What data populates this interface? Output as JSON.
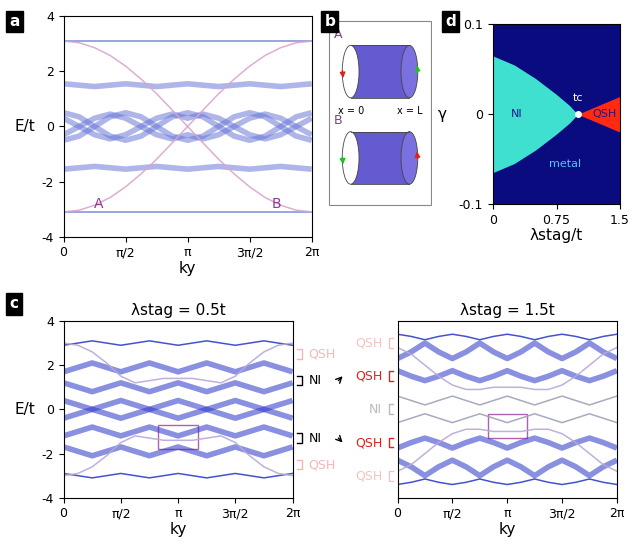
{
  "panel_labels": [
    "a",
    "b",
    "c",
    "d"
  ],
  "chart_data": [
    {
      "type": "band_structure",
      "panel": "a",
      "xlabel": "ky",
      "ylabel": "E/t",
      "xlim": [
        0,
        6.283
      ],
      "ylim": [
        -4,
        4
      ],
      "xticks": [
        0,
        {
          "value": 1.571,
          "label": "π/2"
        },
        {
          "value": 3.142,
          "label": "π"
        },
        {
          "value": 4.712,
          "label": "3π/2"
        },
        {
          "value": 6.283,
          "label": "2π"
        }
      ],
      "yticks": [
        -4,
        -2,
        0,
        2,
        4
      ],
      "x": [
        0,
        0.393,
        0.785,
        1.178,
        1.571,
        1.963,
        2.356,
        2.749,
        3.142,
        3.534,
        3.927,
        4.32,
        4.712,
        5.105,
        5.498,
        5.89,
        6.283
      ],
      "series": [
        {
          "type": "line",
          "color": "#7080d0",
          "values": [
            3.1,
            3.1,
            3.1,
            3.1,
            3.1,
            3.1,
            3.1,
            3.1,
            3.1,
            3.1,
            3.1,
            3.1,
            3.1,
            3.1,
            3.1,
            3.1,
            3.1
          ]
        },
        {
          "type": "line",
          "color": "#7080d0",
          "values": [
            -3.1,
            -3.1,
            -3.1,
            -3.1,
            -3.1,
            -3.1,
            -3.1,
            -3.1,
            -3.1,
            -3.1,
            -3.1,
            -3.1,
            -3.1,
            -3.1,
            -3.1,
            -3.1,
            -3.1
          ]
        },
        {
          "type": "band",
          "color": "#6a78d8",
          "values": [
            1.55,
            1.5,
            1.45,
            1.5,
            1.55,
            1.5,
            1.45,
            1.5,
            1.55,
            1.5,
            1.45,
            1.5,
            1.55,
            1.5,
            1.45,
            1.5,
            1.55
          ]
        },
        {
          "type": "band",
          "color": "#6a78d8",
          "values": [
            -1.55,
            -1.5,
            -1.45,
            -1.5,
            -1.55,
            -1.5,
            -1.45,
            -1.5,
            -1.55,
            -1.5,
            -1.45,
            -1.5,
            -1.55,
            -1.5,
            -1.45,
            -1.5,
            -1.55
          ]
        },
        {
          "type": "band",
          "color": "#6a78d8",
          "values": [
            0.5,
            0.35,
            0,
            -0.35,
            -0.5,
            -0.35,
            0,
            0.35,
            0.5,
            0.35,
            0,
            -0.35,
            -0.5,
            -0.35,
            0,
            0.35,
            0.5
          ]
        },
        {
          "type": "band",
          "color": "#6a78d8",
          "values": [
            -0.5,
            -0.35,
            0,
            0.35,
            0.5,
            0.35,
            0,
            -0.35,
            -0.5,
            -0.35,
            0,
            0.35,
            0.5,
            0.35,
            0,
            -0.35,
            -0.5
          ]
        },
        {
          "type": "band",
          "color": "#6a78d8",
          "values": [
            -0.3,
            0,
            0.3,
            0.45,
            0.3,
            0,
            -0.3,
            -0.45,
            -0.3,
            -0.45,
            -0.3,
            0,
            0.3,
            0.45,
            0.3,
            0,
            -0.3
          ]
        },
        {
          "type": "band",
          "color": "#6a78d8",
          "values": [
            0.3,
            0,
            -0.3,
            -0.45,
            -0.3,
            0,
            0.3,
            0.45,
            0.3,
            0.45,
            0.3,
            0,
            -0.3,
            -0.45,
            -0.3,
            0,
            0.3
          ]
        },
        {
          "type": "line",
          "color": "#d8a6cf",
          "values": [
            -3.1,
            -3.04,
            -2.86,
            -2.58,
            -2.19,
            -1.72,
            -1.19,
            -0.6,
            0,
            0.6,
            1.19,
            1.72,
            2.19,
            2.58,
            2.86,
            3.04,
            3.1
          ]
        },
        {
          "type": "line",
          "color": "#d8a6cf",
          "values": [
            3.1,
            3.04,
            2.86,
            2.58,
            2.19,
            1.72,
            1.19,
            0.6,
            0,
            -0.6,
            -1.19,
            -1.72,
            -2.19,
            -2.58,
            -2.86,
            -3.04,
            -3.1
          ]
        }
      ],
      "labels": [
        {
          "text": "A",
          "x": 0.9,
          "y": -2.8,
          "color": "#8b3a8b"
        },
        {
          "text": "B",
          "x": 5.4,
          "y": -2.8,
          "color": "#8b3a8b"
        }
      ]
    },
    {
      "type": "band_structure",
      "panel": "c",
      "title": "λstag = 0.5t",
      "xlabel": "ky",
      "ylabel": "E/t",
      "xlim": [
        0,
        6.283
      ],
      "ylim": [
        -4,
        4
      ],
      "xticks": [
        0,
        {
          "value": 1.571,
          "label": "π/2"
        },
        {
          "value": 3.142,
          "label": "π"
        },
        {
          "value": 4.712,
          "label": "3π/2"
        },
        {
          "value": 6.283,
          "label": "2π"
        }
      ],
      "yticks": [
        -4,
        -2,
        0,
        2,
        4
      ],
      "x": [
        0,
        0.393,
        0.785,
        1.178,
        1.571,
        1.963,
        2.356,
        2.749,
        3.142,
        3.534,
        3.927,
        4.32,
        4.712,
        5.105,
        5.498,
        5.89,
        6.283
      ],
      "series": [
        {
          "type": "line",
          "color": "#3040c8",
          "values": [
            2.9,
            3.0,
            3.1,
            3.0,
            2.9,
            3.0,
            3.1,
            3.0,
            2.9,
            3.0,
            3.1,
            3.0,
            2.9,
            3.0,
            3.1,
            3.0,
            2.9
          ]
        },
        {
          "type": "line",
          "color": "#3040c8",
          "values": [
            -2.9,
            -3.0,
            -3.1,
            -3.0,
            -2.9,
            -3.0,
            -3.1,
            -3.0,
            -2.9,
            -3.0,
            -3.1,
            -3.0,
            -2.9,
            -3.0,
            -3.1,
            -3.0,
            -2.9
          ]
        },
        {
          "type": "band",
          "color": "#2a35c8",
          "values": [
            1.7,
            1.9,
            2.1,
            1.9,
            1.7,
            1.9,
            2.1,
            1.9,
            1.7,
            1.9,
            2.1,
            1.9,
            1.7,
            1.9,
            2.1,
            1.9,
            1.7
          ]
        },
        {
          "type": "band",
          "color": "#2a35c8",
          "values": [
            -1.7,
            -1.9,
            -2.1,
            -1.9,
            -1.7,
            -1.9,
            -2.1,
            -1.9,
            -1.7,
            -1.9,
            -2.1,
            -1.9,
            -1.7,
            -1.9,
            -2.1,
            -1.9,
            -1.7
          ]
        },
        {
          "type": "band",
          "color": "#2a35c8",
          "values": [
            1.2,
            1.0,
            0.8,
            1.0,
            1.2,
            1.0,
            0.8,
            1.0,
            1.2,
            1.0,
            0.8,
            1.0,
            1.2,
            1.0,
            0.8,
            1.0,
            1.2
          ]
        },
        {
          "type": "band",
          "color": "#2a35c8",
          "values": [
            -1.2,
            -1.0,
            -0.8,
            -1.0,
            -1.2,
            -1.0,
            -0.8,
            -1.0,
            -1.2,
            -1.0,
            -0.8,
            -1.0,
            -1.2,
            -1.0,
            -0.8,
            -1.0,
            -1.2
          ]
        },
        {
          "type": "band",
          "color": "#2a35c8",
          "values": [
            0.4,
            0.2,
            0,
            -0.2,
            -0.4,
            -0.2,
            0,
            0.2,
            0.4,
            0.2,
            0,
            -0.2,
            -0.4,
            -0.2,
            0,
            0.2,
            0.4
          ]
        },
        {
          "type": "band",
          "color": "#2a35c8",
          "values": [
            -0.4,
            -0.2,
            0,
            0.2,
            0.4,
            0.2,
            0,
            -0.2,
            -0.4,
            -0.2,
            0,
            0.2,
            0.4,
            0.2,
            0,
            -0.2,
            -0.4
          ]
        },
        {
          "type": "line",
          "color": "#b8a8d8",
          "values": [
            -3.0,
            -2.9,
            -2.6,
            -2.1,
            -1.5,
            -1.2,
            -1.3,
            -1.4,
            -1.4,
            -1.4,
            -1.3,
            -1.2,
            -1.5,
            -2.1,
            -2.6,
            -2.9,
            -3.0
          ]
        },
        {
          "type": "line",
          "color": "#b8a8d8",
          "values": [
            3.0,
            2.9,
            2.6,
            2.1,
            1.5,
            1.2,
            1.3,
            1.4,
            1.4,
            1.4,
            1.3,
            1.2,
            1.5,
            2.1,
            2.6,
            2.9,
            3.0
          ]
        }
      ],
      "highlight_box": {
        "x": [
          2.6,
          3.7
        ],
        "y": [
          -1.8,
          -0.7
        ],
        "color": "#b060b0"
      },
      "side_labels": [
        {
          "text": "QSH",
          "y": 2.5,
          "color": "#f2b8b8"
        },
        {
          "text": "NI",
          "y": 1.3,
          "color": "#000000"
        },
        {
          "text": "NI",
          "y": -1.3,
          "color": "#000000"
        },
        {
          "text": "QSH",
          "y": -2.5,
          "color": "#f2b8b8"
        }
      ]
    },
    {
      "type": "band_structure",
      "panel": "c",
      "title": "λstag = 1.5t",
      "xlabel": "ky",
      "tick_labels": "x",
      "xlim": [
        0,
        6.283
      ],
      "ylim": [
        -4,
        4
      ],
      "xticks": [
        0,
        {
          "value": 1.571,
          "label": "π/2"
        },
        {
          "value": 3.142,
          "label": "π"
        },
        {
          "value": 4.712,
          "label": "3π/2"
        },
        {
          "value": 6.283,
          "label": "2π"
        }
      ],
      "x": [
        0,
        0.393,
        0.785,
        1.178,
        1.571,
        1.963,
        2.356,
        2.749,
        3.142,
        3.534,
        3.927,
        4.32,
        4.712,
        5.105,
        5.498,
        5.89,
        6.283
      ],
      "series": [
        {
          "type": "line",
          "color": "#3040c8",
          "values": [
            3.4,
            3.3,
            3.15,
            3.3,
            3.4,
            3.3,
            3.15,
            3.3,
            3.4,
            3.3,
            3.15,
            3.3,
            3.4,
            3.3,
            3.15,
            3.3,
            3.4
          ]
        },
        {
          "type": "line",
          "color": "#3040c8",
          "values": [
            -3.4,
            -3.3,
            -3.15,
            -3.3,
            -3.4,
            -3.3,
            -3.15,
            -3.3,
            -3.4,
            -3.3,
            -3.15,
            -3.3,
            -3.4,
            -3.3,
            -3.15,
            -3.3,
            -3.4
          ]
        },
        {
          "type": "band",
          "color": "#2a35c8",
          "values": [
            2.3,
            2.6,
            3.0,
            2.6,
            2.3,
            2.6,
            3.0,
            2.6,
            2.3,
            2.6,
            3.0,
            2.6,
            2.3,
            2.6,
            3.0,
            2.6,
            2.3
          ]
        },
        {
          "type": "band",
          "color": "#2a35c8",
          "values": [
            -2.3,
            -2.6,
            -3.0,
            -2.6,
            -2.3,
            -2.6,
            -3.0,
            -2.6,
            -2.3,
            -2.6,
            -3.0,
            -2.6,
            -2.3,
            -2.6,
            -3.0,
            -2.6,
            -2.3
          ]
        },
        {
          "type": "band",
          "color": "#2a35c8",
          "values": [
            1.75,
            1.5,
            1.3,
            1.5,
            1.75,
            1.5,
            1.3,
            1.5,
            1.75,
            1.5,
            1.3,
            1.5,
            1.75,
            1.5,
            1.3,
            1.5,
            1.75
          ]
        },
        {
          "type": "band",
          "color": "#2a35c8",
          "values": [
            -1.75,
            -1.5,
            -1.3,
            -1.5,
            -1.75,
            -1.5,
            -1.3,
            -1.5,
            -1.75,
            -1.5,
            -1.3,
            -1.5,
            -1.75,
            -1.5,
            -1.3,
            -1.5,
            -1.75
          ]
        },
        {
          "type": "line",
          "color": "#a0a0b8",
          "values": [
            0.6,
            0.4,
            0.2,
            0.4,
            0.6,
            0.4,
            0.2,
            0.4,
            0.6,
            0.4,
            0.2,
            0.4,
            0.6,
            0.4,
            0.2,
            0.4,
            0.6
          ]
        },
        {
          "type": "line",
          "color": "#a0a0b8",
          "values": [
            -0.6,
            -0.4,
            -0.2,
            -0.4,
            -0.6,
            -0.4,
            -0.2,
            -0.4,
            -0.6,
            -0.4,
            -0.2,
            -0.4,
            -0.6,
            -0.4,
            -0.2,
            -0.4,
            -0.6
          ]
        },
        {
          "type": "line",
          "color": "#b8a8d8",
          "values": [
            -2.8,
            -2.5,
            -2.0,
            -1.5,
            -1.1,
            -0.9,
            -0.9,
            -1.0,
            -1.0,
            -1.0,
            -0.9,
            -0.9,
            -1.1,
            -1.5,
            -2.0,
            -2.5,
            -2.8
          ]
        },
        {
          "type": "line",
          "color": "#b8a8d8",
          "values": [
            2.8,
            2.5,
            2.0,
            1.5,
            1.1,
            0.9,
            0.9,
            1.0,
            1.0,
            1.0,
            0.9,
            0.9,
            1.1,
            1.5,
            2.0,
            2.5,
            2.8
          ]
        }
      ],
      "highlight_box": {
        "x": [
          2.6,
          3.7
        ],
        "y": [
          -1.3,
          -0.2
        ],
        "color": "#b060b0"
      },
      "side_labels": [
        {
          "text": "QSH",
          "y": 3.0,
          "color": "#f4c2c2"
        },
        {
          "text": "QSH",
          "y": 1.5,
          "color": "#e0201b"
        },
        {
          "text": "NI",
          "y": 0.0,
          "color": "#bbbbbb"
        },
        {
          "text": "QSH",
          "y": -1.5,
          "color": "#e0201b"
        },
        {
          "text": "QSH",
          "y": -3.0,
          "color": "#f4c2c2"
        }
      ]
    },
    {
      "type": "phase_diagram",
      "panel": "d",
      "xlabel": "λstag/t",
      "ylabel": "γ",
      "xlim": [
        0,
        1.5
      ],
      "ylim": [
        -0.1,
        0.1
      ],
      "xticks": [
        0,
        0.75,
        1.5
      ],
      "yticks": [
        -0.1,
        0,
        0.1
      ],
      "background": {
        "name": "metal",
        "color": "#0b0b80",
        "label_color": "#50c8f0",
        "label_at": [
          0.85,
          -0.055
        ]
      },
      "regions": [
        {
          "name": "NI",
          "color": "#40e0d0",
          "label_color": "#1a1a8a",
          "label_at": [
            0.28,
            0.0
          ],
          "x": [
            0,
            0.25,
            0.5,
            0.75,
            0.9,
            1.0
          ],
          "upper": [
            0.065,
            0.055,
            0.04,
            0.022,
            0.01,
            0
          ],
          "lower": [
            -0.065,
            -0.055,
            -0.04,
            -0.022,
            -0.01,
            0
          ]
        },
        {
          "name": "QSH",
          "color": "#ff2a10",
          "label_color": "#1a1a8a",
          "label_at": [
            1.32,
            0.0
          ],
          "x": [
            1.0,
            1.2,
            1.35,
            1.5
          ],
          "upper": [
            0,
            0.008,
            0.014,
            0.02
          ],
          "lower": [
            0,
            -0.008,
            -0.014,
            -0.02
          ]
        }
      ],
      "point": {
        "text": "tc",
        "x": 1.0,
        "y": 0.0,
        "color": "#ffffff"
      }
    }
  ],
  "diagram": {
    "panel": "b",
    "cylinders": [
      {
        "label": "A",
        "left_arrow": "#e02020",
        "right_arrow": "#20c020"
      },
      {
        "label": "B",
        "left_arrow": "#20c020",
        "right_arrow": "#e02020"
      }
    ],
    "left_edge": "x = 0",
    "right_edge": "x = L",
    "label_color": "#8b3a8b",
    "fill": "#4a3ec8"
  }
}
